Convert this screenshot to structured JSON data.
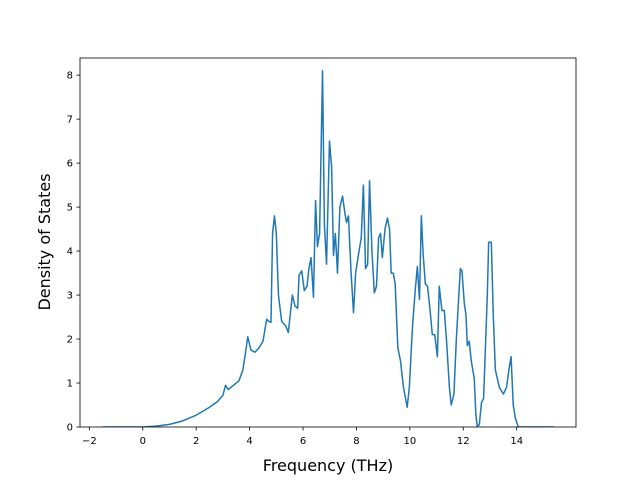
{
  "chart_data": {
    "type": "line",
    "xlabel": "Frequency (THz)",
    "ylabel": "Density of States",
    "color": "#1f77b4",
    "x": [
      -1.5,
      -0.5,
      0,
      0.5,
      1,
      1.5,
      2,
      2.5,
      2.8,
      3.0,
      3.1,
      3.2,
      3.4,
      3.6,
      3.75,
      3.85,
      3.93,
      4.05,
      4.2,
      4.35,
      4.5,
      4.64,
      4.72,
      4.8,
      4.86,
      4.93,
      5.0,
      5.08,
      5.2,
      5.35,
      5.45,
      5.6,
      5.7,
      5.8,
      5.85,
      5.95,
      6.05,
      6.15,
      6.22,
      6.3,
      6.39,
      6.47,
      6.54,
      6.62,
      6.73,
      6.8,
      6.88,
      6.99,
      7.07,
      7.14,
      7.21,
      7.29,
      7.38,
      7.48,
      7.57,
      7.63,
      7.7,
      7.8,
      7.89,
      7.97,
      8.07,
      8.18,
      8.26,
      8.34,
      8.42,
      8.49,
      8.58,
      8.67,
      8.75,
      8.83,
      8.9,
      8.97,
      9.07,
      9.16,
      9.24,
      9.3,
      9.38,
      9.45,
      9.55,
      9.65,
      9.76,
      9.9,
      9.98,
      10.1,
      10.2,
      10.28,
      10.36,
      10.43,
      10.5,
      10.58,
      10.66,
      10.75,
      10.84,
      10.93,
      11.03,
      11.1,
      11.2,
      11.29,
      11.38,
      11.48,
      11.55,
      11.65,
      11.74,
      11.89,
      11.95,
      12.04,
      12.1,
      12.15,
      12.22,
      12.3,
      12.41,
      12.47,
      12.52,
      12.6,
      12.68,
      12.76,
      12.9,
      12.95,
      13.05,
      13.12,
      13.2,
      13.35,
      13.5,
      13.62,
      13.72,
      13.79,
      13.87,
      13.95,
      14.06,
      15.4
    ],
    "values": [
      0,
      0,
      0,
      0.02,
      0.06,
      0.14,
      0.27,
      0.45,
      0.58,
      0.72,
      0.95,
      0.85,
      0.95,
      1.05,
      1.3,
      1.7,
      2.05,
      1.75,
      1.7,
      1.8,
      1.95,
      2.45,
      2.4,
      2.38,
      4.4,
      4.8,
      4.4,
      3.0,
      2.4,
      2.3,
      2.15,
      3.0,
      2.75,
      2.7,
      3.45,
      3.55,
      3.1,
      3.2,
      3.6,
      3.85,
      2.95,
      5.15,
      4.1,
      4.4,
      8.1,
      4.6,
      3.7,
      6.5,
      5.9,
      3.9,
      4.4,
      3.5,
      5.0,
      5.25,
      4.85,
      4.65,
      4.8,
      3.5,
      2.6,
      3.5,
      3.9,
      4.3,
      5.5,
      3.6,
      3.7,
      5.6,
      4.0,
      3.05,
      3.2,
      4.3,
      4.4,
      3.85,
      4.5,
      4.75,
      4.5,
      3.5,
      3.5,
      3.25,
      1.8,
      1.5,
      0.9,
      0.45,
      0.9,
      2.3,
      3.1,
      3.65,
      2.9,
      4.8,
      3.9,
      3.25,
      3.2,
      2.7,
      2.1,
      2.1,
      1.6,
      3.2,
      2.65,
      2.65,
      1.9,
      0.9,
      0.5,
      0.75,
      2.0,
      3.6,
      3.55,
      2.8,
      2.55,
      1.85,
      1.95,
      1.5,
      1.1,
      0.3,
      0.02,
      0.05,
      0.55,
      0.65,
      3.0,
      4.2,
      4.2,
      2.6,
      1.3,
      0.9,
      0.75,
      0.9,
      1.35,
      1.6,
      0.5,
      0.2,
      0,
      0
    ],
    "xlim": [
      -2.35,
      16.22
    ],
    "ylim": [
      0,
      8.39
    ],
    "xticks": [
      {
        "value": -2,
        "label": "−2"
      },
      0,
      2,
      4,
      6,
      8,
      10,
      12,
      14
    ],
    "yticks": [
      0,
      1,
      2,
      3,
      4,
      5,
      6,
      7,
      8
    ]
  }
}
